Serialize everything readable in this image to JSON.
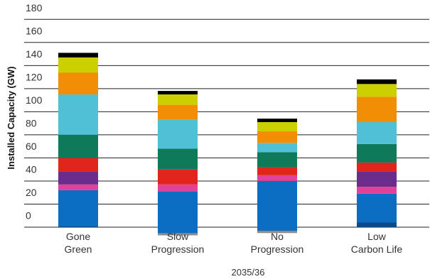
{
  "chart_data": {
    "type": "bar",
    "stacked": true,
    "xlabel": "2035/36",
    "ylabel": "Installed Capacity (GW)",
    "ylim": [
      -10,
      180
    ],
    "yticks": [
      "0",
      "20",
      "40",
      "60",
      "80",
      "100",
      "120",
      "140",
      "160",
      "180"
    ],
    "categories": [
      [
        "Gone",
        "Green"
      ],
      [
        "Slow",
        "Progression"
      ],
      [
        "No",
        "Progression"
      ],
      [
        "Low",
        "Carbon Life"
      ]
    ],
    "grid": true,
    "segment_colors": [
      "#0c4a8a",
      "#8d8d8d",
      "#0b6ec2",
      "#e0429a",
      "#6b2d8c",
      "#e0251c",
      "#0e7a5a",
      "#4fc0d6",
      "#f28e06",
      "#cdd000",
      "#000000"
    ],
    "series": [
      {
        "values": [
          1,
          -7,
          -5,
          4
        ]
      },
      {
        "values": [
          0,
          2,
          2,
          0
        ]
      },
      {
        "values": [
          31,
          36,
          43,
          25
        ]
      },
      {
        "values": [
          5,
          6,
          5,
          6
        ]
      },
      {
        "values": [
          11,
          0,
          0,
          13
        ]
      },
      {
        "values": [
          12,
          13,
          7,
          8
        ]
      },
      {
        "values": [
          20,
          18,
          13,
          16
        ]
      },
      {
        "values": [
          35,
          25,
          8,
          19
        ]
      },
      {
        "values": [
          19,
          13,
          10,
          22
        ]
      },
      {
        "values": [
          13,
          9,
          8,
          11
        ]
      },
      {
        "values": [
          4,
          3,
          3,
          4
        ]
      }
    ],
    "base": -10
  }
}
